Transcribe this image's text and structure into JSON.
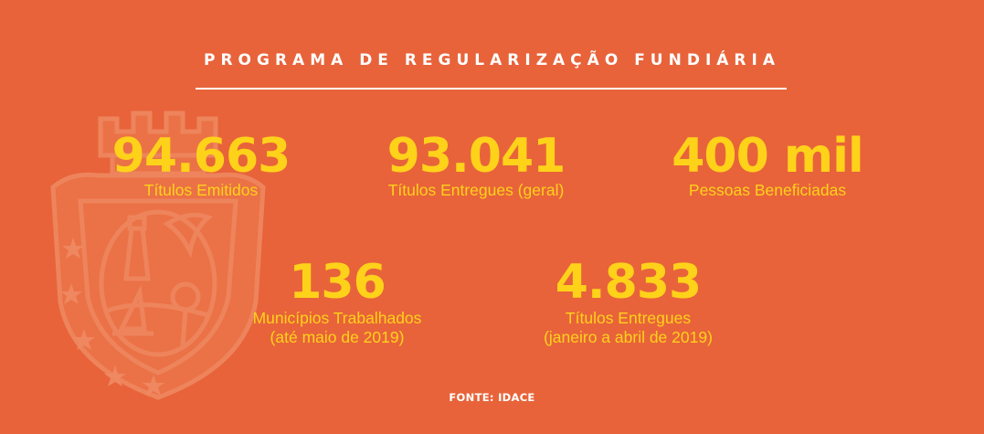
{
  "title": "PROGRAMA DE REGULARIZAÇÃO FUNDIÁRIA",
  "stats": [
    {
      "value": "94.663",
      "label": "Títulos Emitidos"
    },
    {
      "value": "93.041",
      "label": "Títulos Entregues (geral)"
    },
    {
      "value": "400 mil",
      "label": "Pessoas Beneficiadas"
    },
    {
      "value": "136",
      "label": "Municípios Trabalhados",
      "note": "(até maio de 2019)"
    },
    {
      "value": "4.833",
      "label": "Títulos Entregues",
      "note": "(janeiro a abril de 2019)"
    }
  ],
  "source": "FONTE: IDACE",
  "colors": {
    "background": "#E8633A",
    "accent": "#FFD21A",
    "text": "#FFFFFF",
    "emblem": "#F08A63"
  },
  "emblem_icon": "ceara-coat-of-arms-icon"
}
